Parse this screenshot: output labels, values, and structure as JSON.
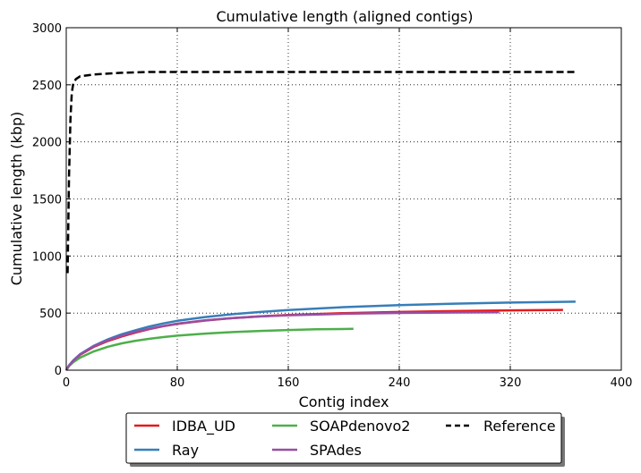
{
  "chart_data": {
    "type": "line",
    "title": "Cumulative length (aligned contigs)",
    "xlabel": "Contig index",
    "ylabel": "Cumulative length (kbp)",
    "xlim": [
      0,
      400
    ],
    "ylim": [
      0,
      3000
    ],
    "xticks": [
      0,
      80,
      160,
      240,
      320,
      400
    ],
    "yticks": [
      0,
      500,
      1000,
      1500,
      2000,
      2500,
      3000
    ],
    "grid": true,
    "legend_position": "bottom-center, outside plot",
    "series": [
      {
        "name": "IDBA_UD",
        "color": "#e41a1c",
        "dash": "solid",
        "points": [
          [
            0,
            0
          ],
          [
            2,
            40
          ],
          [
            5,
            80
          ],
          [
            10,
            135
          ],
          [
            20,
            205
          ],
          [
            30,
            255
          ],
          [
            40,
            295
          ],
          [
            50,
            330
          ],
          [
            60,
            360
          ],
          [
            70,
            385
          ],
          [
            80,
            405
          ],
          [
            100,
            435
          ],
          [
            120,
            457
          ],
          [
            140,
            472
          ],
          [
            160,
            484
          ],
          [
            200,
            500
          ],
          [
            240,
            510
          ],
          [
            280,
            518
          ],
          [
            320,
            524
          ],
          [
            358,
            528
          ]
        ]
      },
      {
        "name": "Ray",
        "color": "#377eb8",
        "dash": "solid",
        "points": [
          [
            0,
            0
          ],
          [
            2,
            42
          ],
          [
            5,
            85
          ],
          [
            10,
            140
          ],
          [
            20,
            215
          ],
          [
            30,
            270
          ],
          [
            40,
            315
          ],
          [
            50,
            350
          ],
          [
            60,
            383
          ],
          [
            70,
            410
          ],
          [
            80,
            432
          ],
          [
            100,
            465
          ],
          [
            120,
            490
          ],
          [
            140,
            510
          ],
          [
            160,
            527
          ],
          [
            200,
            552
          ],
          [
            240,
            570
          ],
          [
            280,
            583
          ],
          [
            320,
            592
          ],
          [
            367,
            600
          ]
        ]
      },
      {
        "name": "SOAPdenovo2",
        "color": "#4daf4a",
        "dash": "solid",
        "points": [
          [
            0,
            0
          ],
          [
            2,
            35
          ],
          [
            5,
            70
          ],
          [
            10,
            110
          ],
          [
            20,
            165
          ],
          [
            30,
            205
          ],
          [
            40,
            235
          ],
          [
            50,
            258
          ],
          [
            60,
            275
          ],
          [
            70,
            290
          ],
          [
            80,
            302
          ],
          [
            100,
            320
          ],
          [
            120,
            334
          ],
          [
            140,
            344
          ],
          [
            160,
            352
          ],
          [
            180,
            358
          ],
          [
            207,
            362
          ]
        ]
      },
      {
        "name": "SPAdes",
        "color": "#984ea3",
        "dash": "solid",
        "points": [
          [
            0,
            0
          ],
          [
            2,
            40
          ],
          [
            5,
            82
          ],
          [
            10,
            138
          ],
          [
            20,
            210
          ],
          [
            30,
            262
          ],
          [
            40,
            302
          ],
          [
            50,
            335
          ],
          [
            60,
            363
          ],
          [
            70,
            387
          ],
          [
            80,
            407
          ],
          [
            100,
            437
          ],
          [
            120,
            457
          ],
          [
            140,
            471
          ],
          [
            160,
            481
          ],
          [
            200,
            494
          ],
          [
            240,
            501
          ],
          [
            280,
            505
          ],
          [
            312,
            507
          ]
        ]
      },
      {
        "name": "Reference",
        "color": "#000000",
        "dash": "dashed",
        "points": [
          [
            1,
            850
          ],
          [
            2,
            1700
          ],
          [
            3,
            2200
          ],
          [
            4,
            2430
          ],
          [
            5,
            2510
          ],
          [
            7,
            2550
          ],
          [
            10,
            2575
          ],
          [
            20,
            2590
          ],
          [
            40,
            2605
          ],
          [
            60,
            2612
          ],
          [
            100,
            2612
          ],
          [
            200,
            2612
          ],
          [
            300,
            2612
          ],
          [
            367,
            2612
          ]
        ]
      }
    ]
  }
}
